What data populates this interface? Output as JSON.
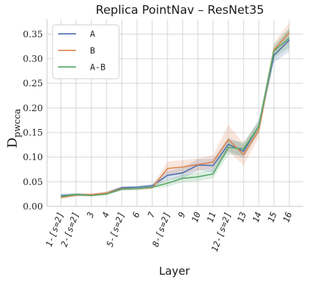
{
  "chart_data": {
    "type": "line",
    "title": "Replica PointNav – ResNet35",
    "xlabel": "Layer",
    "ylabel": "D",
    "ylabel_sub": "pwcca",
    "categories": [
      "1-[s=2]",
      "2-[s=2]",
      "3",
      "4",
      "5-[s=2]",
      "6",
      "7",
      "8-[s=2]",
      "9",
      "10",
      "11",
      "12-[s=2]",
      "13",
      "14",
      "15",
      "16"
    ],
    "ylim": [
      0,
      0.38
    ],
    "yticks": [
      0.0,
      0.05,
      0.1,
      0.15,
      0.2,
      0.25,
      0.3,
      0.35
    ],
    "grid": true,
    "legend_position": "top-left",
    "series": [
      {
        "name": "A",
        "color": "#4c72b0",
        "values": [
          0.022,
          0.024,
          0.023,
          0.027,
          0.038,
          0.039,
          0.042,
          0.063,
          0.068,
          0.084,
          0.083,
          0.126,
          0.112,
          0.163,
          0.307,
          0.338
        ],
        "lower": [
          0.019,
          0.021,
          0.021,
          0.025,
          0.035,
          0.036,
          0.039,
          0.053,
          0.057,
          0.072,
          0.07,
          0.112,
          0.098,
          0.15,
          0.292,
          0.315
        ],
        "upper": [
          0.026,
          0.027,
          0.025,
          0.03,
          0.041,
          0.042,
          0.046,
          0.072,
          0.079,
          0.096,
          0.097,
          0.14,
          0.126,
          0.176,
          0.322,
          0.362
        ]
      },
      {
        "name": "B",
        "color": "#dd8452",
        "values": [
          0.018,
          0.023,
          0.024,
          0.027,
          0.036,
          0.036,
          0.038,
          0.077,
          0.08,
          0.085,
          0.09,
          0.136,
          0.105,
          0.155,
          0.318,
          0.353
        ],
        "lower": [
          0.015,
          0.02,
          0.021,
          0.024,
          0.033,
          0.033,
          0.035,
          0.062,
          0.066,
          0.073,
          0.077,
          0.112,
          0.083,
          0.14,
          0.304,
          0.332
        ],
        "upper": [
          0.021,
          0.026,
          0.027,
          0.03,
          0.04,
          0.04,
          0.042,
          0.091,
          0.094,
          0.098,
          0.104,
          0.166,
          0.128,
          0.17,
          0.332,
          0.374
        ]
      },
      {
        "name": "A-B",
        "color": "#55a868",
        "values": [
          0.02,
          0.024,
          0.022,
          0.025,
          0.035,
          0.036,
          0.039,
          0.047,
          0.057,
          0.06,
          0.066,
          0.12,
          0.117,
          0.162,
          0.316,
          0.342
        ],
        "lower": [
          0.017,
          0.021,
          0.02,
          0.023,
          0.032,
          0.033,
          0.036,
          0.04,
          0.049,
          0.051,
          0.057,
          0.105,
          0.103,
          0.15,
          0.302,
          0.322
        ],
        "upper": [
          0.023,
          0.027,
          0.025,
          0.028,
          0.038,
          0.039,
          0.042,
          0.054,
          0.065,
          0.069,
          0.075,
          0.135,
          0.131,
          0.174,
          0.33,
          0.362
        ]
      }
    ]
  }
}
